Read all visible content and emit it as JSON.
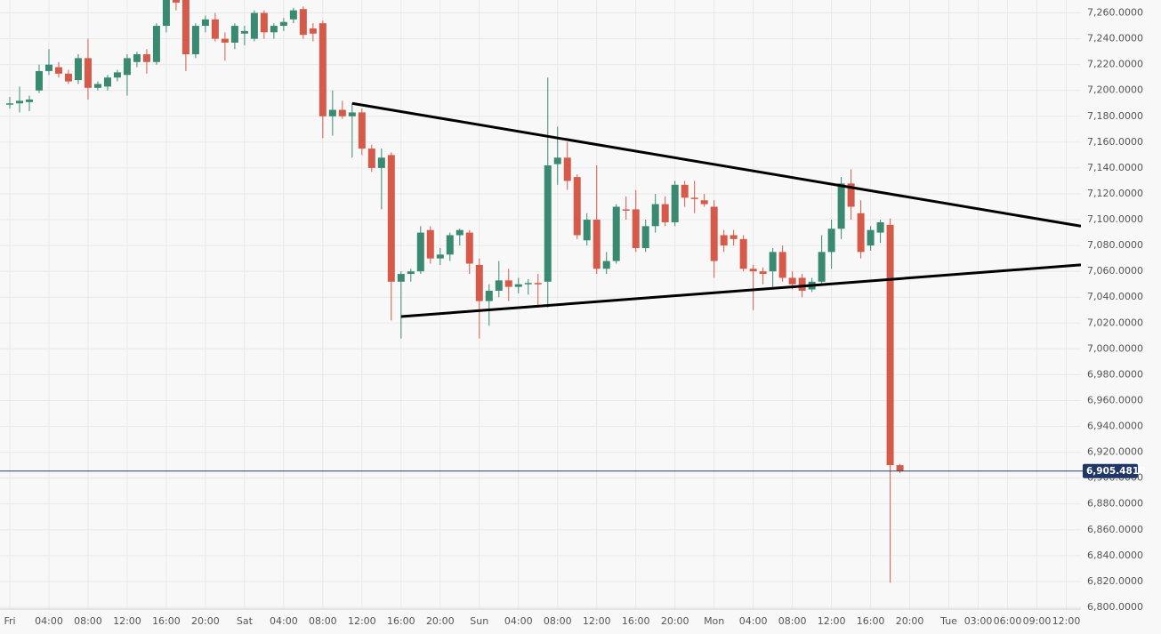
{
  "chart_data": {
    "type": "candlestick",
    "up_color": "#3a8a72",
    "down_color": "#d65a4a",
    "grid": true,
    "xlim": [
      -1,
      109.5
    ],
    "ylim": [
      6800,
      7270
    ],
    "xticks": [
      {
        "value": 0,
        "label": "Fri"
      },
      {
        "value": 4,
        "label": "04:00"
      },
      {
        "value": 8,
        "label": "08:00"
      },
      {
        "value": 12,
        "label": "12:00"
      },
      {
        "value": 16,
        "label": "16:00"
      },
      {
        "value": 20,
        "label": "20:00"
      },
      {
        "value": 24,
        "label": "Sat"
      },
      {
        "value": 28,
        "label": "04:00"
      },
      {
        "value": 32,
        "label": "08:00"
      },
      {
        "value": 36,
        "label": "12:00"
      },
      {
        "value": 40,
        "label": "16:00"
      },
      {
        "value": 44,
        "label": "20:00"
      },
      {
        "value": 48,
        "label": "Sun"
      },
      {
        "value": 52,
        "label": "04:00"
      },
      {
        "value": 56,
        "label": "08:00"
      },
      {
        "value": 60,
        "label": "12:00"
      },
      {
        "value": 64,
        "label": "16:00"
      },
      {
        "value": 68,
        "label": "20:00"
      },
      {
        "value": 72,
        "label": "Mon"
      },
      {
        "value": 76,
        "label": "04:00"
      },
      {
        "value": 80,
        "label": "08:00"
      },
      {
        "value": 84,
        "label": "12:00"
      },
      {
        "value": 88,
        "label": "16:00"
      },
      {
        "value": 92,
        "label": "20:00"
      },
      {
        "value": 96,
        "label": "Tue"
      },
      {
        "value": 99,
        "label": "03:00"
      },
      {
        "value": 102,
        "label": "06:00"
      },
      {
        "value": 105,
        "label": "09:00"
      },
      {
        "value": 108,
        "label": "12:00"
      }
    ],
    "yticks": [
      {
        "value": 6800,
        "label": "6,800.0000"
      },
      {
        "value": 6820,
        "label": "6,820.0000"
      },
      {
        "value": 6840,
        "label": "6,840.0000"
      },
      {
        "value": 6860,
        "label": "6,860.0000"
      },
      {
        "value": 6880,
        "label": "6,880.0000"
      },
      {
        "value": 6900,
        "label": "6,900.0000"
      },
      {
        "value": 6920,
        "label": "6,920.0000"
      },
      {
        "value": 6940,
        "label": "6,940.0000"
      },
      {
        "value": 6960,
        "label": "6,960.0000"
      },
      {
        "value": 6980,
        "label": "6,980.0000"
      },
      {
        "value": 7000,
        "label": "7,000.0000"
      },
      {
        "value": 7020,
        "label": "7,020.0000"
      },
      {
        "value": 7040,
        "label": "7,040.0000"
      },
      {
        "value": 7060,
        "label": "7,060.0000"
      },
      {
        "value": 7080,
        "label": "7,080.0000"
      },
      {
        "value": 7100,
        "label": "7,100.0000"
      },
      {
        "value": 7120,
        "label": "7,120.0000"
      },
      {
        "value": 7140,
        "label": "7,140.0000"
      },
      {
        "value": 7160,
        "label": "7,160.0000"
      },
      {
        "value": 7180,
        "label": "7,180.0000"
      },
      {
        "value": 7200,
        "label": "7,200.0000"
      },
      {
        "value": 7220,
        "label": "7,220.0000"
      },
      {
        "value": 7240,
        "label": "7,240.0000"
      },
      {
        "value": 7260,
        "label": "7,260.0000"
      }
    ],
    "x": [
      0,
      1,
      2,
      3,
      4,
      5,
      6,
      7,
      8,
      9,
      10,
      11,
      12,
      13,
      14,
      15,
      16,
      17,
      18,
      19,
      20,
      21,
      22,
      23,
      24,
      25,
      26,
      27,
      28,
      29,
      30,
      31,
      32,
      33,
      34,
      35,
      36,
      37,
      38,
      39,
      40,
      41,
      42,
      43,
      44,
      45,
      46,
      47,
      48,
      49,
      50,
      51,
      52,
      53,
      54,
      55,
      56,
      57,
      58,
      59,
      60,
      61,
      62,
      63,
      64,
      65,
      66,
      67,
      68,
      69,
      70,
      71,
      72,
      73,
      74,
      75,
      76,
      77,
      78,
      79,
      80,
      81,
      82,
      83,
      84,
      85,
      86,
      87,
      88,
      89,
      90,
      91
    ],
    "open": [
      7190,
      7190,
      7191,
      7200,
      7215,
      7218,
      7213,
      7208,
      7225,
      7202,
      7203,
      7210,
      7212,
      7222,
      7228,
      7222,
      7250,
      7272,
      7270,
      7228,
      7250,
      7255,
      7240,
      7237,
      7244,
      7240,
      7260,
      7245,
      7250,
      7255,
      7263,
      7248,
      7252,
      7180,
      7185,
      7180,
      7183,
      7155,
      7140,
      7150,
      7052,
      7058,
      7060,
      7092,
      7070,
      7073,
      7088,
      7090,
      7065,
      7037,
      7045,
      7053,
      7048,
      7050,
      7051,
      7052,
      7143,
      7148,
      7133,
      7084,
      7100,
      7062,
      7068,
      7108,
      7108,
      7078,
      7095,
      7112,
      7098,
      7127,
      7117,
      7115,
      7110,
      7088,
      7088,
      7085,
      7062,
      7060,
      7060,
      7075,
      7055,
      7055,
      7046,
      7052,
      7075,
      7093,
      7128,
      7105,
      7080,
      7090,
      7096,
      6910
    ],
    "high": [
      7195,
      7203,
      7196,
      7220,
      7232,
      7222,
      7216,
      7228,
      7240,
      7207,
      7212,
      7216,
      7228,
      7230,
      7232,
      7252,
      7278,
      7285,
      7275,
      7252,
      7258,
      7260,
      7245,
      7252,
      7250,
      7262,
      7262,
      7252,
      7256,
      7264,
      7265,
      7252,
      7254,
      7200,
      7192,
      7190,
      7186,
      7158,
      7155,
      7152,
      7060,
      7062,
      7095,
      7095,
      7078,
      7090,
      7093,
      7092,
      7070,
      7050,
      7068,
      7062,
      7055,
      7054,
      7058,
      7210,
      7172,
      7160,
      7135,
      7105,
      7142,
      7075,
      7112,
      7118,
      7123,
      7100,
      7120,
      7118,
      7130,
      7130,
      7130,
      7120,
      7115,
      7092,
      7092,
      7088,
      7065,
      7063,
      7078,
      7080,
      7060,
      7058,
      7055,
      7088,
      7100,
      7133,
      7139,
      7115,
      7095,
      7100,
      7101,
      6911
    ],
    "low": [
      7186,
      7183,
      7184,
      7198,
      7212,
      7210,
      7205,
      7205,
      7193,
      7200,
      7200,
      7207,
      7196,
      7218,
      7213,
      7220,
      7245,
      7262,
      7215,
      7225,
      7245,
      7238,
      7223,
      7232,
      7235,
      7238,
      7240,
      7240,
      7246,
      7252,
      7240,
      7238,
      7163,
      7165,
      7178,
      7148,
      7150,
      7137,
      7108,
      7022,
      7008,
      7052,
      7058,
      7066,
      7065,
      7068,
      7080,
      7058,
      7008,
      7018,
      7040,
      7037,
      7043,
      7042,
      7033,
      7032,
      7127,
      7123,
      7085,
      7080,
      7058,
      7058,
      7066,
      7100,
      7075,
      7075,
      7090,
      7095,
      7095,
      7110,
      7105,
      7110,
      7055,
      7075,
      7080,
      7060,
      7030,
      7050,
      7048,
      7052,
      7046,
      7040,
      7044,
      7050,
      7062,
      7085,
      7100,
      7070,
      7076,
      7082,
      6819,
      6904
    ],
    "close": [
      7190,
      7192,
      7193,
      7215,
      7220,
      7213,
      7207,
      7225,
      7202,
      7205,
      7210,
      7214,
      7225,
      7228,
      7222,
      7250,
      7272,
      7268,
      7228,
      7250,
      7255,
      7240,
      7237,
      7250,
      7246,
      7260,
      7245,
      7250,
      7253,
      7262,
      7243,
      7244,
      7180,
      7185,
      7180,
      7183,
      7155,
      7140,
      7148,
      7052,
      7058,
      7060,
      7090,
      7070,
      7073,
      7088,
      7092,
      7066,
      7037,
      7045,
      7053,
      7048,
      7050,
      7051,
      7050,
      7142,
      7148,
      7130,
      7088,
      7100,
      7062,
      7068,
      7110,
      7107,
      7078,
      7095,
      7112,
      7098,
      7127,
      7117,
      7116,
      7112,
      7068,
      7080,
      7085,
      7062,
      7060,
      7058,
      7075,
      7055,
      7050,
      7045,
      7052,
      7075,
      7093,
      7128,
      7110,
      7075,
      7092,
      7098,
      6910,
      6905.481
    ],
    "trendlines": [
      {
        "x": [
          35,
          109.5
        ],
        "y": [
          7190,
          7095
        ]
      },
      {
        "x": [
          40,
          109.5
        ],
        "y": [
          7025,
          7065
        ]
      }
    ],
    "last_price": {
      "value": 6905.481,
      "label": "6,905.4810"
    }
  }
}
